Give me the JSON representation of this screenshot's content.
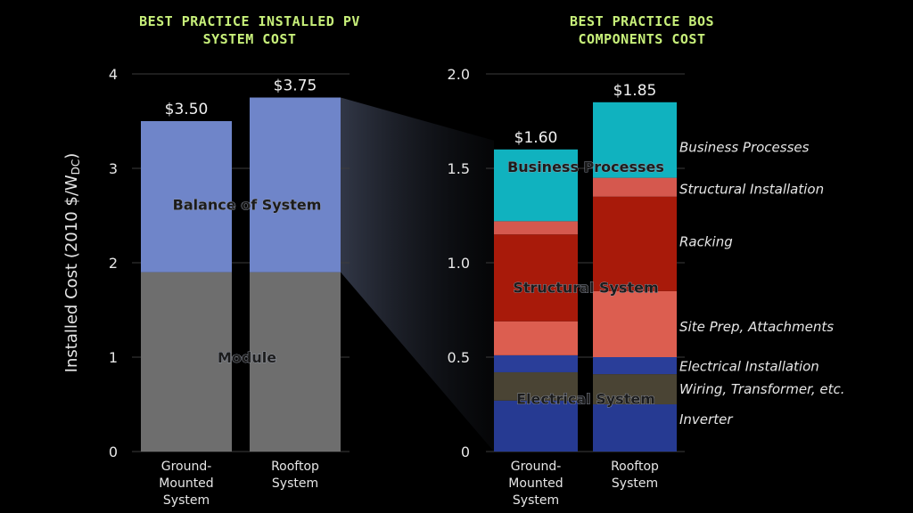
{
  "colors": {
    "background": "#000000",
    "title": "#c8f07a",
    "module": "#6e6e6e",
    "balance_of_system": "#6f85c9",
    "business_processes": "#10b2bf",
    "structural_installation": "#d5584e",
    "racking": "#a81a0a",
    "site_prep": "#dc5e50",
    "electrical_installation": "#2a3e99",
    "wiring": "#4a4434",
    "inverter": "#263a92"
  },
  "chart_data": [
    {
      "type": "bar",
      "stacked": true,
      "title_lines": [
        "BEST PRACTICE INSTALLED PV",
        "SYSTEM COST"
      ],
      "ylabel": "Installed Cost (2010 $/W",
      "ylabel_subscript": "DC",
      "ylabel_suffix": ")",
      "ylim": [
        0,
        4
      ],
      "yticks": [
        "0",
        "1",
        "2",
        "3",
        "4"
      ],
      "categories": [
        [
          "Ground-",
          "Mounted",
          "System"
        ],
        [
          "Rooftop",
          "System"
        ]
      ],
      "totals": [
        3.5,
        3.75
      ],
      "total_labels": [
        "$3.50",
        "$3.75"
      ],
      "series": [
        {
          "name": "Module",
          "values": [
            1.9,
            1.9
          ],
          "color_key": "module"
        },
        {
          "name": "Balance of System",
          "values": [
            1.6,
            1.85
          ],
          "color_key": "balance_of_system"
        }
      ],
      "group_labels": [
        {
          "text": "Module",
          "y": 1.0
        },
        {
          "text": "Balance of System",
          "y": 2.62
        }
      ]
    },
    {
      "type": "bar",
      "stacked": true,
      "title_lines": [
        "BEST PRACTICE BOS",
        "COMPONENTS COST"
      ],
      "ylim": [
        0,
        2
      ],
      "yticks": [
        "0",
        "0.5",
        "1.0",
        "1.5",
        "2.0"
      ],
      "categories": [
        [
          "Ground-",
          "Mounted",
          "System"
        ],
        [
          "Rooftop",
          "System"
        ]
      ],
      "totals": [
        1.6,
        1.85
      ],
      "total_labels": [
        "$1.60",
        "$1.85"
      ],
      "series": [
        {
          "name": "Inverter",
          "values": [
            0.27,
            0.25
          ],
          "color_key": "inverter"
        },
        {
          "name": "Wiring, Transformer, etc.",
          "values": [
            0.15,
            0.16
          ],
          "color_key": "wiring"
        },
        {
          "name": "Electrical Installation",
          "values": [
            0.09,
            0.09
          ],
          "color_key": "electrical_installation"
        },
        {
          "name": "Site Prep, Attachments",
          "values": [
            0.18,
            0.35
          ],
          "color_key": "site_prep"
        },
        {
          "name": "Racking",
          "values": [
            0.46,
            0.5
          ],
          "color_key": "racking"
        },
        {
          "name": "Structural Installation",
          "values": [
            0.07,
            0.1
          ],
          "color_key": "structural_installation"
        },
        {
          "name": "Business Processes",
          "values": [
            0.38,
            0.4
          ],
          "color_key": "business_processes"
        }
      ],
      "group_labels": [
        {
          "text": "Business Processes",
          "y": 1.51
        },
        {
          "text": "Structural System",
          "y": 0.87
        },
        {
          "text": "Electrical System",
          "y": 0.28
        }
      ],
      "legend": [
        {
          "text": "Business Processes",
          "y": 1.61
        },
        {
          "text": "Structural Installation",
          "y": 1.39
        },
        {
          "text": "Racking",
          "y": 1.11
        },
        {
          "text": "Site Prep, Attachments",
          "y": 0.66
        },
        {
          "text": "Electrical Installation",
          "y": 0.45
        },
        {
          "text": "Wiring, Transformer, etc.",
          "y": 0.33
        },
        {
          "text": "Inverter",
          "y": 0.17
        }
      ]
    }
  ]
}
